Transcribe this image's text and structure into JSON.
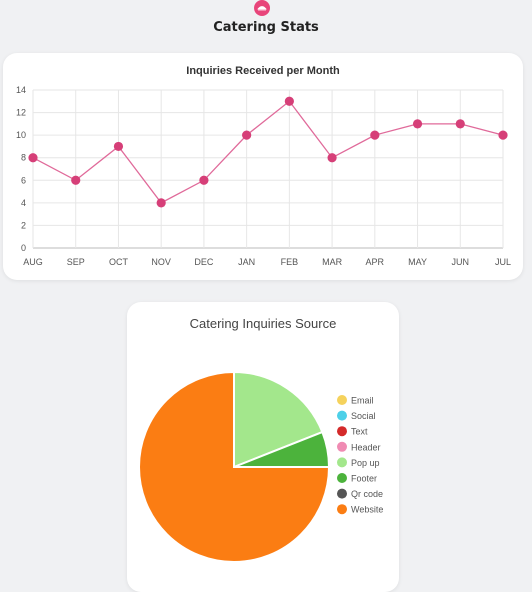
{
  "page": {
    "title": "Catering Stats"
  },
  "line_chart_title": "Inquiries Received per Month",
  "pie_chart_title": "Catering Inquiries Source",
  "colors": {
    "accent": "#e8457a",
    "line": "#e06a9a",
    "point": "#d63f78"
  },
  "chart_data": [
    {
      "type": "line",
      "title": "Inquiries Received per Month",
      "categories": [
        "AUG",
        "SEP",
        "OCT",
        "NOV",
        "DEC",
        "JAN",
        "FEB",
        "MAR",
        "APR",
        "MAY",
        "JUN",
        "JUL"
      ],
      "series": [
        {
          "values": [
            8,
            6,
            9,
            4,
            6,
            10,
            13,
            8,
            10,
            11,
            11,
            10
          ]
        }
      ],
      "ylim": [
        0,
        14
      ],
      "yticks": [
        0,
        2,
        4,
        6,
        8,
        10,
        12,
        14
      ],
      "grid": true
    },
    {
      "type": "pie",
      "title": "Catering Inquiries Source",
      "legend_position": "right",
      "slices": [
        {
          "label": "Email",
          "value": 0,
          "color": "#f5d25c"
        },
        {
          "label": "Social",
          "value": 0,
          "color": "#4dd0e8"
        },
        {
          "label": "Text",
          "value": 0,
          "color": "#d42a2a"
        },
        {
          "label": "Header",
          "value": 0,
          "color": "#f08bb3"
        },
        {
          "label": "Pop up",
          "value": 19,
          "color": "#a3e78c"
        },
        {
          "label": "Footer",
          "value": 6,
          "color": "#4cb33c"
        },
        {
          "label": "Qr code",
          "value": 0,
          "color": "#555555"
        },
        {
          "label": "Website",
          "value": 75,
          "color": "#fb7d13"
        }
      ]
    }
  ]
}
